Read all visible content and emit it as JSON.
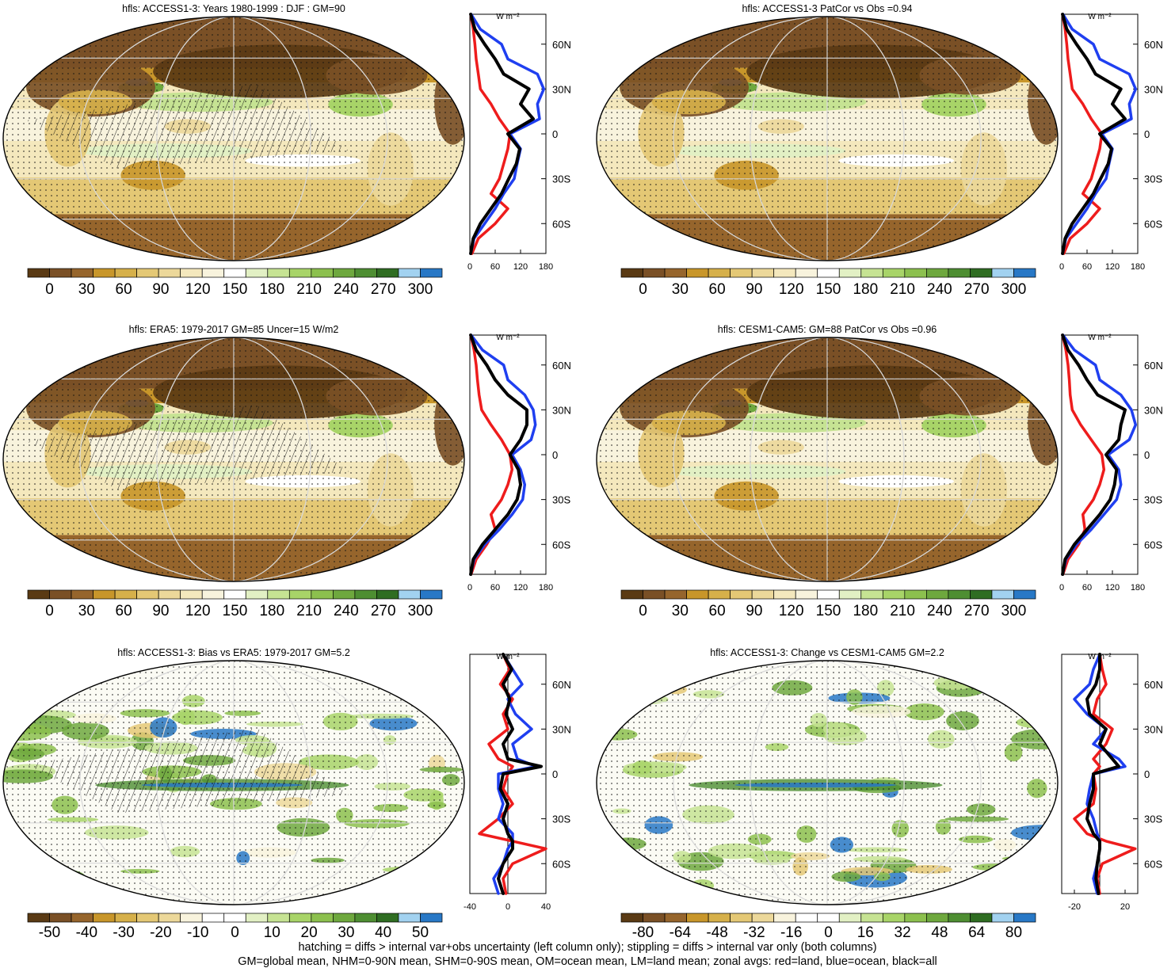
{
  "palettes": {
    "abs": [
      "#5a3a14",
      "#7a5026",
      "#96652c",
      "#c8962a",
      "#d6b04a",
      "#e4c875",
      "#ecd89a",
      "#f4e8bd",
      "#f8f3dd",
      "#ffffff",
      "#e2f0c4",
      "#c6e393",
      "#a8d468",
      "#8cc04e",
      "#6ea83e",
      "#4e8e32",
      "#2f6d22",
      "#a2d2f0",
      "#2878c6"
    ],
    "diff": [
      "#5a3a14",
      "#7a5026",
      "#96652c",
      "#c8962a",
      "#d6b04a",
      "#e4c875",
      "#ecd89a",
      "#f8f3dd",
      "#ffffff",
      "#ffffff",
      "#e2f0c4",
      "#c6e393",
      "#a8d468",
      "#8cc04e",
      "#6ea83e",
      "#4e8e32",
      "#2f6d22",
      "#a2d2f0",
      "#2878c6"
    ],
    "zonal_colors": {
      "land": "#ee1c1c",
      "ocean": "#1f3ff0",
      "all": "#000000"
    }
  },
  "panels": [
    {
      "id": "access-djf",
      "title": "hfls: ACCESS1-3: Years 1980-1999 : DJF : GM=90",
      "palette": "abs",
      "hatching": true,
      "colorbar_labels": [
        "0",
        "30",
        "60",
        "90",
        "120",
        "150",
        "180",
        "210",
        "240",
        "270",
        "300"
      ],
      "zonal": {
        "unit": "W m⁻²",
        "xticks": [
          "0",
          "60",
          "120",
          "180"
        ],
        "xtick_values": [
          0,
          60,
          120,
          180
        ],
        "xlim": [
          0,
          180
        ],
        "lat_labels": [
          "60N",
          "30N",
          "0",
          "30S",
          "60S"
        ],
        "lat": [
          80,
          70,
          60,
          50,
          40,
          30,
          20,
          10,
          0,
          -10,
          -20,
          -30,
          -40,
          -50,
          -60,
          -70,
          -80
        ],
        "land": [
          2,
          8,
          12,
          15,
          20,
          25,
          50,
          70,
          95,
          90,
          80,
          70,
          50,
          90,
          60,
          20,
          5
        ],
        "ocean": [
          3,
          25,
          75,
          90,
          160,
          175,
          160,
          165,
          95,
          120,
          112,
          105,
          80,
          60,
          35,
          10,
          2
        ],
        "all": [
          2,
          12,
          35,
          60,
          80,
          140,
          120,
          150,
          90,
          118,
          110,
          92,
          75,
          50,
          25,
          8,
          2
        ]
      }
    },
    {
      "id": "access-patcor",
      "title": "hfls: ACCESS1-3 PatCor vs Obs =0.94",
      "palette": "abs",
      "hatching": false,
      "colorbar_labels": [
        "0",
        "30",
        "60",
        "90",
        "120",
        "150",
        "180",
        "210",
        "240",
        "270",
        "300"
      ],
      "zonal": {
        "unit": "W m⁻²",
        "xticks": [
          "0",
          "60",
          "120",
          "180"
        ],
        "xtick_values": [
          0,
          60,
          120,
          180
        ],
        "xlim": [
          0,
          180
        ],
        "lat_labels": [
          "60N",
          "30N",
          "0",
          "30S",
          "60S"
        ],
        "lat": [
          80,
          70,
          60,
          50,
          40,
          30,
          20,
          10,
          0,
          -10,
          -20,
          -30,
          -40,
          -50,
          -60,
          -70,
          -80
        ],
        "land": [
          2,
          8,
          12,
          15,
          20,
          25,
          50,
          70,
          95,
          90,
          80,
          70,
          50,
          90,
          60,
          20,
          5
        ],
        "ocean": [
          3,
          25,
          75,
          90,
          160,
          175,
          160,
          165,
          95,
          120,
          112,
          105,
          80,
          60,
          35,
          10,
          2
        ],
        "all": [
          2,
          12,
          35,
          60,
          80,
          140,
          120,
          150,
          90,
          118,
          110,
          92,
          75,
          50,
          25,
          8,
          2
        ]
      }
    },
    {
      "id": "era5",
      "title": "hfls: ERA5: 1979-2017 GM=85 Uncer=15 W/m2",
      "palette": "abs",
      "hatching": true,
      "colorbar_labels": [
        "0",
        "30",
        "60",
        "90",
        "120",
        "150",
        "180",
        "210",
        "240",
        "270",
        "300"
      ],
      "zonal": {
        "unit": "W m⁻²",
        "xticks": [
          "0",
          "60",
          "120",
          "180"
        ],
        "xtick_values": [
          0,
          60,
          120,
          180
        ],
        "xlim": [
          0,
          180
        ],
        "lat_labels": [
          "60N",
          "30N",
          "0",
          "30S",
          "60S"
        ],
        "lat": [
          80,
          70,
          60,
          50,
          40,
          30,
          20,
          10,
          0,
          -10,
          -20,
          -30,
          -40,
          -50,
          -60,
          -70,
          -80
        ],
        "land": [
          2,
          10,
          15,
          18,
          22,
          28,
          50,
          75,
          95,
          100,
          90,
          75,
          50,
          60,
          40,
          15,
          3
        ],
        "ocean": [
          3,
          30,
          80,
          90,
          130,
          150,
          155,
          145,
          100,
          120,
          130,
          125,
          100,
          70,
          35,
          10,
          2
        ],
        "all": [
          2,
          15,
          40,
          60,
          90,
          135,
          135,
          120,
          95,
          115,
          120,
          112,
          90,
          60,
          30,
          8,
          2
        ]
      }
    },
    {
      "id": "cesm",
      "title": "hfls: CESM1-CAM5: GM=88 PatCor vs Obs =0.96",
      "palette": "abs",
      "hatching": false,
      "colorbar_labels": [
        "0",
        "30",
        "60",
        "90",
        "120",
        "150",
        "180",
        "210",
        "240",
        "270",
        "300"
      ],
      "zonal": {
        "unit": "W m⁻²",
        "xticks": [
          "0",
          "60",
          "120",
          "180"
        ],
        "xtick_values": [
          0,
          60,
          120,
          180
        ],
        "xlim": [
          0,
          180
        ],
        "lat_labels": [
          "60N",
          "30N",
          "0",
          "30S",
          "60S"
        ],
        "lat": [
          80,
          70,
          60,
          50,
          40,
          30,
          20,
          10,
          0,
          -10,
          -20,
          -30,
          -40,
          -50,
          -60,
          -70,
          -80
        ],
        "land": [
          2,
          10,
          15,
          18,
          20,
          25,
          45,
          70,
          95,
          100,
          90,
          75,
          50,
          55,
          40,
          15,
          3
        ],
        "ocean": [
          3,
          30,
          80,
          90,
          140,
          165,
          175,
          160,
          110,
          135,
          140,
          130,
          100,
          70,
          35,
          10,
          2
        ],
        "all": [
          2,
          15,
          40,
          60,
          85,
          150,
          140,
          135,
          105,
          130,
          125,
          115,
          90,
          60,
          30,
          8,
          2
        ]
      }
    },
    {
      "id": "bias",
      "title": "hfls: ACCESS1-3: Bias vs ERA5: 1979-2017 GM=5.2",
      "palette": "diff",
      "hatching": true,
      "colorbar_labels": [
        "-50",
        "-40",
        "-30",
        "-20",
        "-10",
        "0",
        "10",
        "20",
        "30",
        "40",
        "50"
      ],
      "zonal": {
        "unit": "W m⁻²",
        "xticks": [
          "-40",
          "0",
          "40"
        ],
        "xtick_values": [
          -40,
          0,
          40
        ],
        "xlim": [
          -40,
          40
        ],
        "lat_labels": [
          "60N",
          "30N",
          "0",
          "30S",
          "60S"
        ],
        "lat": [
          80,
          70,
          60,
          50,
          40,
          30,
          20,
          10,
          5,
          0,
          -10,
          -20,
          -30,
          -40,
          -45,
          -50,
          -60,
          -70,
          -80
        ],
        "land": [
          -5,
          2,
          -8,
          5,
          -5,
          0,
          -20,
          -10,
          5,
          0,
          -5,
          5,
          -10,
          -30,
          5,
          40,
          5,
          -5,
          -2
        ],
        "ocean": [
          -5,
          5,
          15,
          0,
          8,
          25,
          5,
          10,
          30,
          -10,
          -10,
          -5,
          -10,
          5,
          5,
          0,
          -5,
          -15,
          -10
        ],
        "all": [
          -5,
          4,
          -5,
          2,
          -2,
          5,
          -5,
          0,
          35,
          -5,
          -8,
          0,
          -5,
          0,
          5,
          5,
          -5,
          -10,
          -5
        ]
      }
    },
    {
      "id": "change",
      "title": "hfls: ACCESS1-3: Change vs CESM1-CAM5 GM=2.2",
      "palette": "diff",
      "hatching": false,
      "colorbar_labels": [
        "-80",
        "-64",
        "-48",
        "-32",
        "-16",
        "0",
        "16",
        "32",
        "48",
        "64",
        "80"
      ],
      "zonal": {
        "unit": "W m⁻²",
        "xticks": [
          "-20",
          "20"
        ],
        "xtick_values": [
          -20,
          20
        ],
        "xlim": [
          -30,
          30
        ],
        "lat_labels": [
          "60N",
          "30N",
          "0",
          "30S",
          "60S"
        ],
        "lat": [
          80,
          70,
          60,
          50,
          40,
          30,
          20,
          10,
          5,
          0,
          -10,
          -20,
          -30,
          -40,
          -45,
          -50,
          -60,
          -70,
          -80
        ],
        "land": [
          0,
          2,
          5,
          -2,
          -5,
          10,
          5,
          -5,
          0,
          -5,
          -3,
          -5,
          -20,
          -10,
          5,
          28,
          2,
          -2,
          0
        ],
        "ocean": [
          0,
          -5,
          -8,
          -20,
          -10,
          5,
          -5,
          15,
          20,
          -5,
          -8,
          -10,
          -5,
          -2,
          0,
          0,
          -2,
          -5,
          -2
        ],
        "all": [
          0,
          0,
          -3,
          -10,
          -8,
          5,
          0,
          10,
          15,
          -5,
          -5,
          -8,
          -10,
          -5,
          0,
          0,
          -2,
          -3,
          -1
        ]
      }
    }
  ],
  "footnote_1": "hatching = diffs > internal var+obs uncertainty (left column only); stippling = diffs > internal var only (both columns)",
  "footnote_2": "GM=global mean, NHM=0-90N mean, SHM=0-90S mean, OM=ocean mean, LM=land mean; zonal avgs: red=land, blue=ocean, black=all"
}
